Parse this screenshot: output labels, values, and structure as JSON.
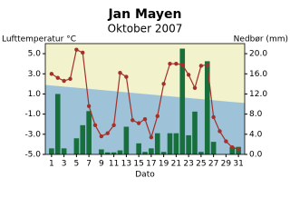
{
  "chart_data": {
    "type": "climate",
    "title": "Jan Mayen",
    "subtitle": "Oktober 2007",
    "y_label": "Lufttemperatur °C",
    "y2_label": "Nedbør (mm)",
    "x_label": "Dato",
    "x": [
      1,
      2,
      3,
      4,
      5,
      6,
      7,
      8,
      9,
      10,
      11,
      12,
      13,
      14,
      15,
      16,
      17,
      18,
      19,
      20,
      21,
      22,
      23,
      24,
      25,
      26,
      27,
      28,
      29,
      30,
      31
    ],
    "xlim": [
      0,
      32
    ],
    "xticks": [
      1,
      3,
      5,
      7,
      9,
      11,
      13,
      15,
      17,
      19,
      21,
      23,
      25,
      27,
      29,
      31
    ],
    "ylim": [
      -5,
      6
    ],
    "yticks": [
      {
        "value": -5,
        "label": "-5.0"
      },
      {
        "value": -3,
        "label": "-3.0"
      },
      {
        "value": -1,
        "label": "-1.0"
      },
      {
        "value": 1,
        "label": "1.0"
      },
      {
        "value": 3,
        "label": "3.0"
      },
      {
        "value": 5,
        "label": "5.0"
      }
    ],
    "y2lim": [
      0,
      22
    ],
    "y2ticks": [
      {
        "value": 0,
        "label": "0.0"
      },
      {
        "value": 4,
        "label": "4.0"
      },
      {
        "value": 8,
        "label": "8.0"
      },
      {
        "value": 12,
        "label": "12.0"
      },
      {
        "value": 16,
        "label": "16.0"
      },
      {
        "value": 20,
        "label": "20.0"
      }
    ],
    "background": "#f2f2cc",
    "series": [
      {
        "type": "area",
        "color": "#9ec3d8",
        "x": [
          0,
          32
        ],
        "values": [
          1.9,
          0.1
        ]
      },
      {
        "type": "bar",
        "axis": "y2",
        "color": "#17703c",
        "values": [
          1.2,
          12.0,
          1.2,
          0,
          3.2,
          5.8,
          8.6,
          0,
          1.0,
          0.4,
          0.4,
          0.8,
          5.5,
          0,
          2.2,
          0.5,
          1.2,
          4.2,
          0.5,
          4.2,
          4.2,
          21.0,
          3.8,
          8.5,
          0.5,
          18.5,
          2.5,
          0,
          0,
          1.5,
          1.5
        ]
      },
      {
        "type": "line",
        "color": "#a3302a",
        "values": [
          3.0,
          2.6,
          2.3,
          2.5,
          5.4,
          5.1,
          -0.2,
          -2.1,
          -3.2,
          -2.9,
          -2.1,
          3.1,
          2.7,
          -1.6,
          -1.9,
          -1.5,
          -3.3,
          -1.2,
          2.0,
          4.0,
          4.0,
          3.9,
          2.9,
          1.6,
          3.8,
          3.9,
          -1.3,
          -2.7,
          -3.7,
          -4.3,
          -4.5
        ]
      }
    ]
  }
}
